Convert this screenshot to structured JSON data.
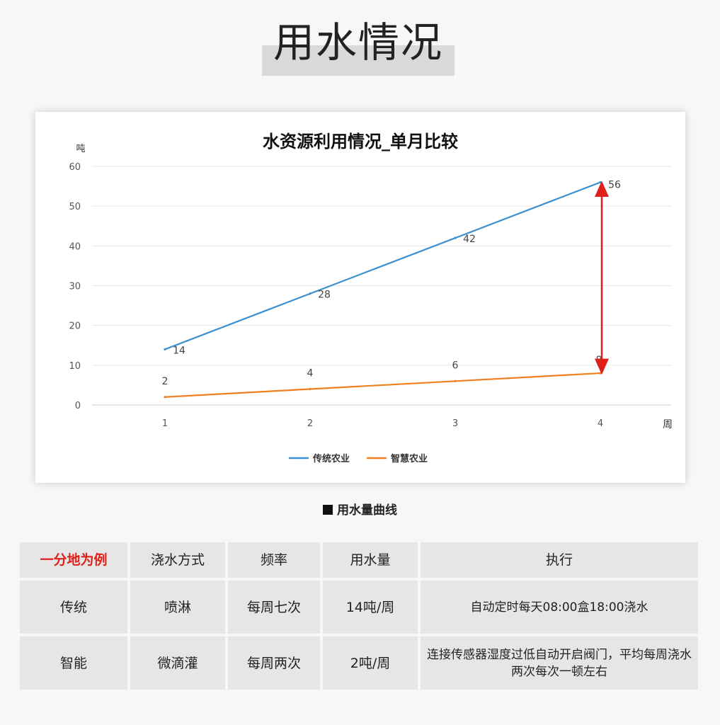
{
  "page_title": "用水情况",
  "chart_data": {
    "type": "line",
    "title": "水资源利用情况_单月比较",
    "ylabel": "吨",
    "xlabel": "周",
    "categories": [
      "1",
      "2",
      "3",
      "4"
    ],
    "ylim": [
      0,
      60
    ],
    "yticks": [
      "0",
      "10",
      "20",
      "30",
      "40",
      "50",
      "60"
    ],
    "grid": true,
    "legend": "bottom",
    "series": [
      {
        "name": "传统农业",
        "values": [
          14,
          28,
          42,
          56
        ],
        "labels": [
          "14",
          "28",
          "42",
          "56"
        ],
        "color": "#3a8fd0"
      },
      {
        "name": "智慧农业",
        "values": [
          2,
          4,
          6,
          8
        ],
        "labels": [
          "2",
          "4",
          "6",
          "8"
        ],
        "color": "#f07f1d"
      }
    ],
    "annotation": {
      "type": "double-arrow",
      "x": "4",
      "from": 8,
      "to": 56,
      "color": "#e0201b"
    }
  },
  "caption": "用水量曲线",
  "table": {
    "header": [
      "一分地为例",
      "浇水方式",
      "频率",
      "用水量",
      "执行"
    ],
    "rows": [
      [
        "传统",
        "喷淋",
        "每周七次",
        "14吨/周",
        "自动定时每天08:00盒18:00浇水"
      ],
      [
        "智能",
        "微滴灌",
        "每周两次",
        "2吨/周",
        "连接传感器湿度过低自动开启阀门，平均每周浇水两次每次一顿左右"
      ]
    ]
  }
}
